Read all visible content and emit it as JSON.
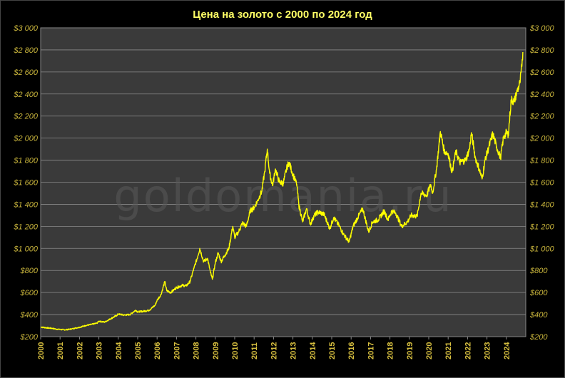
{
  "chart_data": {
    "type": "line",
    "title": "Цена на золото с 2000 по 2024  год",
    "watermark": "goldomania.ru",
    "xlabel": "",
    "ylabel": "",
    "x_categories": [
      "2000",
      "2001",
      "2002",
      "2003",
      "2004",
      "2005",
      "2006",
      "2007",
      "2008",
      "2009",
      "2010",
      "2011",
      "2012",
      "2013",
      "2014",
      "2015",
      "2016",
      "2017",
      "2018",
      "2019",
      "2020",
      "2021",
      "2022",
      "2023",
      "2024"
    ],
    "ylim": [
      200,
      3000
    ],
    "y_ticks": [
      200,
      400,
      600,
      800,
      1000,
      1200,
      1400,
      1600,
      1800,
      2000,
      2200,
      2400,
      2600,
      2800,
      3000
    ],
    "y_tick_labels": [
      "$200",
      "$400",
      "$600",
      "$800",
      "$1 000",
      "$1 200",
      "$1 400",
      "$1 600",
      "$1 800",
      "$2 000",
      "$2 200",
      "$2 400",
      "$2 600",
      "$2 800",
      "$3 000"
    ],
    "grid": true,
    "colors": {
      "line": "#ffff00",
      "plot_bg": "#3a3a3a",
      "grid": "#8a8a8a",
      "title": "#ffff66"
    },
    "series": [
      {
        "points": [
          [
            2000.0,
            288
          ],
          [
            2000.3,
            280
          ],
          [
            2000.6,
            275
          ],
          [
            2000.8,
            268
          ],
          [
            2001.0,
            265
          ],
          [
            2001.3,
            262
          ],
          [
            2001.6,
            270
          ],
          [
            2001.8,
            278
          ],
          [
            2002.0,
            285
          ],
          [
            2002.3,
            300
          ],
          [
            2002.6,
            310
          ],
          [
            2002.9,
            322
          ],
          [
            2003.0,
            340
          ],
          [
            2003.3,
            332
          ],
          [
            2003.6,
            362
          ],
          [
            2003.9,
            390
          ],
          [
            2004.0,
            405
          ],
          [
            2004.3,
            395
          ],
          [
            2004.6,
            400
          ],
          [
            2004.9,
            440
          ],
          [
            2005.0,
            425
          ],
          [
            2005.3,
            430
          ],
          [
            2005.6,
            440
          ],
          [
            2005.9,
            485
          ],
          [
            2006.0,
            530
          ],
          [
            2006.2,
            580
          ],
          [
            2006.4,
            700
          ],
          [
            2006.5,
            615
          ],
          [
            2006.7,
            600
          ],
          [
            2006.9,
            630
          ],
          [
            2007.0,
            645
          ],
          [
            2007.3,
            665
          ],
          [
            2007.5,
            660
          ],
          [
            2007.7,
            700
          ],
          [
            2007.9,
            820
          ],
          [
            2008.1,
            930
          ],
          [
            2008.2,
            1000
          ],
          [
            2008.4,
            880
          ],
          [
            2008.6,
            910
          ],
          [
            2008.75,
            780
          ],
          [
            2008.85,
            720
          ],
          [
            2009.0,
            870
          ],
          [
            2009.15,
            960
          ],
          [
            2009.3,
            880
          ],
          [
            2009.5,
            940
          ],
          [
            2009.7,
            1000
          ],
          [
            2009.9,
            1200
          ],
          [
            2010.0,
            1100
          ],
          [
            2010.2,
            1150
          ],
          [
            2010.4,
            1230
          ],
          [
            2010.6,
            1200
          ],
          [
            2010.8,
            1340
          ],
          [
            2011.0,
            1370
          ],
          [
            2011.2,
            1440
          ],
          [
            2011.4,
            1520
          ],
          [
            2011.55,
            1700
          ],
          [
            2011.68,
            1900
          ],
          [
            2011.8,
            1680
          ],
          [
            2011.95,
            1570
          ],
          [
            2012.1,
            1720
          ],
          [
            2012.3,
            1600
          ],
          [
            2012.5,
            1590
          ],
          [
            2012.7,
            1740
          ],
          [
            2012.8,
            1780
          ],
          [
            2013.0,
            1670
          ],
          [
            2013.2,
            1580
          ],
          [
            2013.3,
            1400
          ],
          [
            2013.5,
            1240
          ],
          [
            2013.7,
            1360
          ],
          [
            2013.9,
            1220
          ],
          [
            2014.1,
            1300
          ],
          [
            2014.3,
            1330
          ],
          [
            2014.6,
            1310
          ],
          [
            2014.9,
            1180
          ],
          [
            2015.1,
            1280
          ],
          [
            2015.4,
            1200
          ],
          [
            2015.6,
            1130
          ],
          [
            2015.9,
            1060
          ],
          [
            2016.1,
            1200
          ],
          [
            2016.4,
            1300
          ],
          [
            2016.6,
            1360
          ],
          [
            2016.9,
            1150
          ],
          [
            2017.1,
            1240
          ],
          [
            2017.4,
            1260
          ],
          [
            2017.7,
            1340
          ],
          [
            2017.9,
            1260
          ],
          [
            2018.1,
            1340
          ],
          [
            2018.3,
            1320
          ],
          [
            2018.6,
            1200
          ],
          [
            2018.9,
            1240
          ],
          [
            2019.1,
            1300
          ],
          [
            2019.4,
            1290
          ],
          [
            2019.6,
            1500
          ],
          [
            2019.9,
            1480
          ],
          [
            2020.1,
            1580
          ],
          [
            2020.2,
            1500
          ],
          [
            2020.4,
            1720
          ],
          [
            2020.6,
            2060
          ],
          [
            2020.8,
            1880
          ],
          [
            2021.0,
            1860
          ],
          [
            2021.2,
            1690
          ],
          [
            2021.4,
            1880
          ],
          [
            2021.6,
            1780
          ],
          [
            2021.9,
            1800
          ],
          [
            2022.1,
            1900
          ],
          [
            2022.2,
            2050
          ],
          [
            2022.4,
            1820
          ],
          [
            2022.6,
            1720
          ],
          [
            2022.75,
            1630
          ],
          [
            2022.9,
            1800
          ],
          [
            2023.1,
            1920
          ],
          [
            2023.3,
            2040
          ],
          [
            2023.5,
            1920
          ],
          [
            2023.7,
            1820
          ],
          [
            2023.85,
            2000
          ],
          [
            2024.0,
            2050
          ],
          [
            2024.1,
            2030
          ],
          [
            2024.25,
            2350
          ],
          [
            2024.4,
            2330
          ],
          [
            2024.55,
            2420
          ],
          [
            2024.7,
            2500
          ],
          [
            2024.8,
            2650
          ],
          [
            2024.85,
            2780
          ]
        ]
      }
    ]
  }
}
